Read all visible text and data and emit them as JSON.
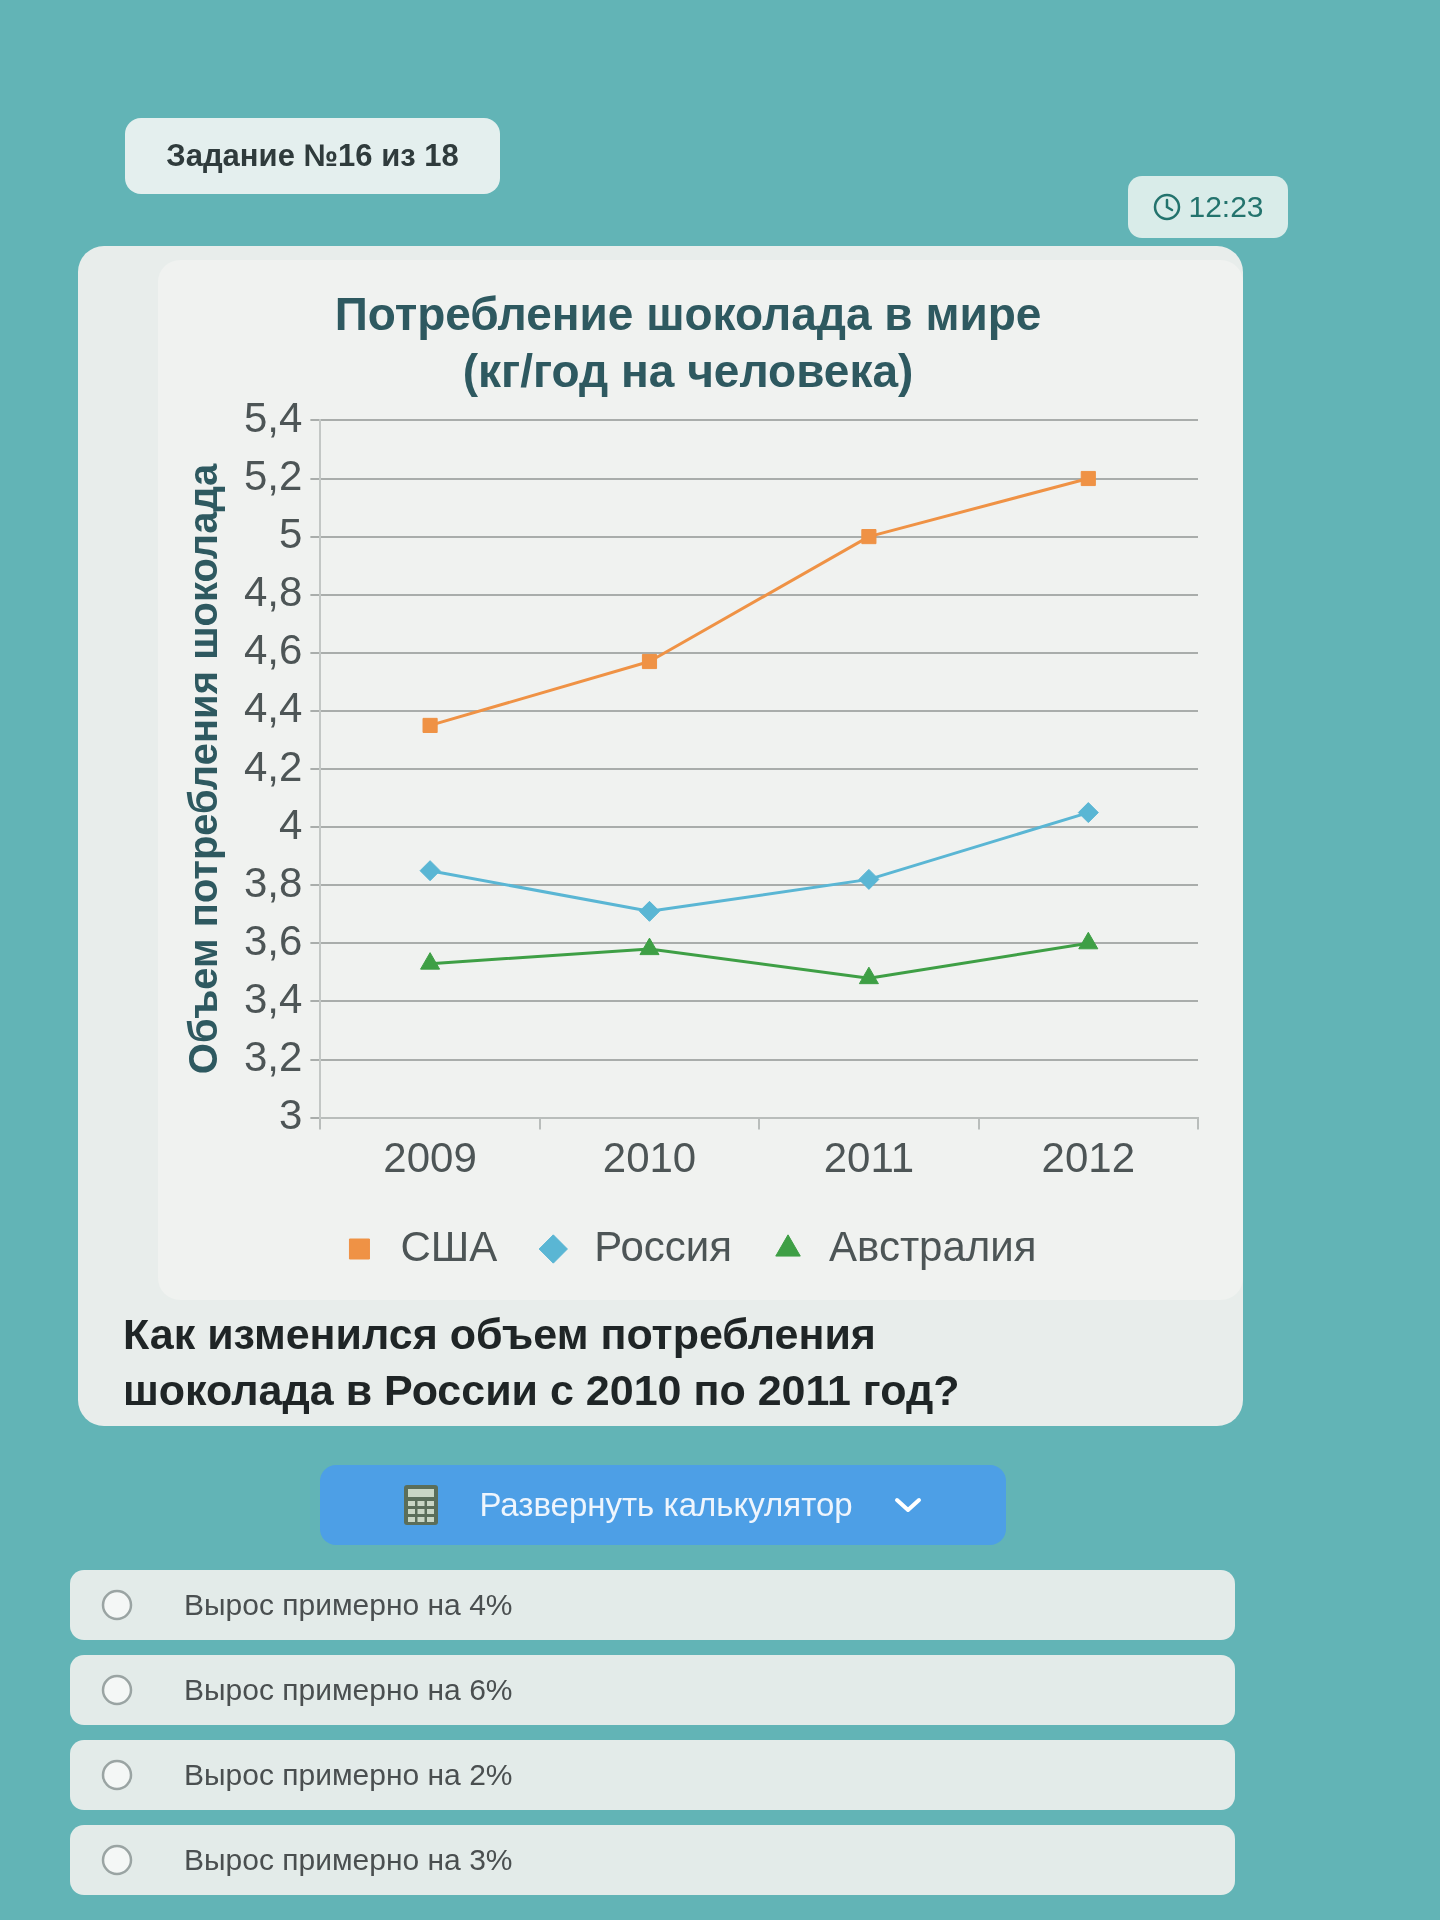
{
  "chart_data": {
    "type": "line",
    "title": "Потребление шоколада в мире",
    "subtitle": "(кг/год на человека)",
    "ylabel": "Объем потребления шоколада",
    "categories": [
      "2009",
      "2010",
      "2011",
      "2012"
    ],
    "series": [
      {
        "name": "США",
        "color": "#ef9245",
        "marker": "square",
        "values": [
          4.35,
          4.57,
          5.0,
          5.2
        ]
      },
      {
        "name": "Россия",
        "color": "#5ab6d4",
        "marker": "diamond",
        "values": [
          3.85,
          3.71,
          3.82,
          4.05
        ]
      },
      {
        "name": "Австралия",
        "color": "#3e9f45",
        "marker": "triangle",
        "values": [
          3.53,
          3.58,
          3.48,
          3.6
        ]
      }
    ],
    "ylim": [
      3,
      5.4
    ],
    "yticks": [
      3,
      {
        "value": 3.2,
        "label": "3,2"
      },
      {
        "value": 3.4,
        "label": "3,4"
      },
      {
        "value": 3.6,
        "label": "3,6"
      },
      {
        "value": 3.8,
        "label": "3,8"
      },
      4,
      {
        "value": 4.2,
        "label": "4,2"
      },
      {
        "value": 4.4,
        "label": "4,4"
      },
      {
        "value": 4.6,
        "label": "4,6"
      },
      {
        "value": 4.8,
        "label": "4,8"
      },
      5,
      {
        "value": 5.2,
        "label": "5,2"
      },
      {
        "value": 5.4,
        "label": "5,4"
      }
    ],
    "grid": "y",
    "legend": "bottom",
    "line_style": "solid",
    "annotations": [
      "Задание №16 из 18",
      "12:23",
      "Как изменился объем потребления шоколада в России с 2010 по 2011 год?",
      "Развернуть калькулятор",
      "Вырос примерно на 4%",
      "Вырос примерно на 6%",
      "Вырос примерно на 2%",
      "Вырос примерно на 3%"
    ]
  }
}
